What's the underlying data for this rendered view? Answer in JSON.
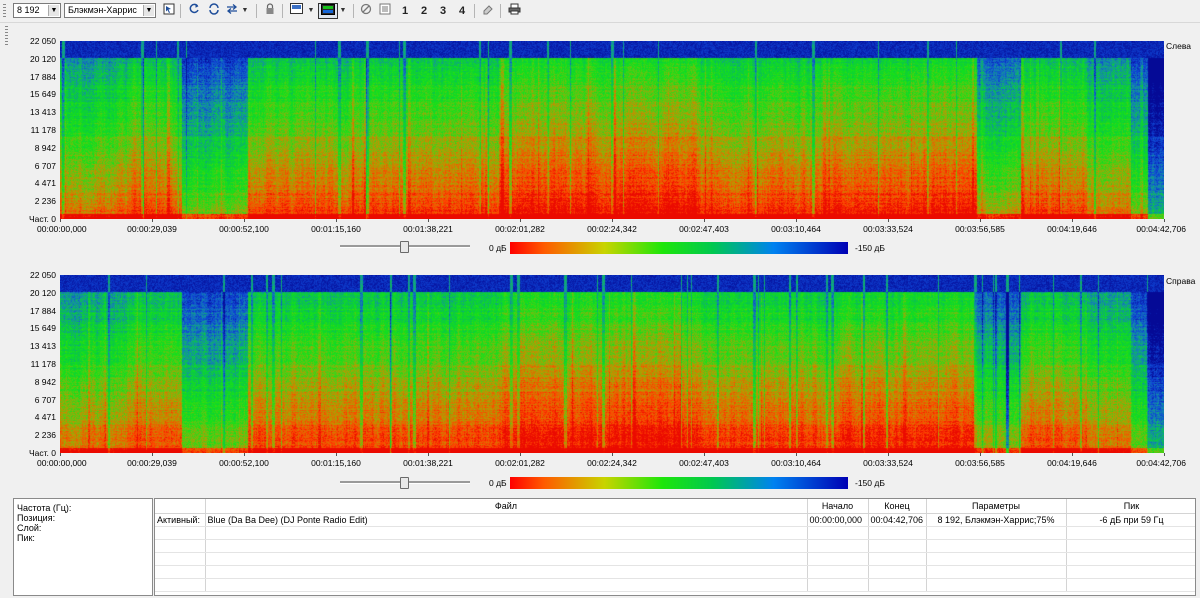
{
  "toolbar": {
    "fft_size": "8 192",
    "window": "Блэкмэн-Харрис",
    "buttons": [
      {
        "name": "select-icon"
      },
      {
        "name": "refresh-icon"
      },
      {
        "name": "sync-icon"
      },
      {
        "name": "swap-icon"
      },
      {
        "name": "lock-icon"
      },
      {
        "name": "display-mode-icon"
      },
      {
        "name": "spectrum-view-icon"
      },
      {
        "name": "cancel-icon"
      },
      {
        "name": "list-icon"
      },
      {
        "name": "layer-1-button",
        "label": "1"
      },
      {
        "name": "layer-2-button",
        "label": "2"
      },
      {
        "name": "layer-3-button",
        "label": "3"
      },
      {
        "name": "layer-4-button",
        "label": "4"
      },
      {
        "name": "eraser-icon"
      },
      {
        "name": "print-icon"
      }
    ]
  },
  "spectrograms": [
    {
      "channel": "Слева",
      "y_labels": [
        "22 050",
        "20 120",
        "17 884",
        "15 649",
        "13 413",
        "11 178",
        "8 942",
        "6 707",
        "4 471",
        "2 236",
        "Част. 0"
      ],
      "x_labels": [
        "00:00:00,000",
        "00:00:29,039",
        "00:00:52,100",
        "00:01:15,160",
        "00:01:38,221",
        "00:02:01,282",
        "00:02:24,342",
        "00:02:47,403",
        "00:03:10,464",
        "00:03:33,524",
        "00:03:56,585",
        "00:04:19,646",
        "00:04:42,706"
      ],
      "slider_value": 0.5
    },
    {
      "channel": "Справа",
      "y_labels": [
        "22 050",
        "20 120",
        "17 884",
        "15 649",
        "13 413",
        "11 178",
        "8 942",
        "6 707",
        "4 471",
        "2 236",
        "Част. 0"
      ],
      "x_labels": [
        "00:00:00,000",
        "00:00:29,039",
        "00:00:52,100",
        "00:01:15,160",
        "00:01:38,221",
        "00:02:01,282",
        "00:02:24,342",
        "00:02:47,403",
        "00:03:10,464",
        "00:03:33,524",
        "00:03:56,585",
        "00:04:19,646",
        "00:04:42,706"
      ],
      "slider_value": 0.5
    }
  ],
  "scale": {
    "min_label": "0 дБ",
    "max_label": "-150 дБ",
    "colors": [
      "#ff0000",
      "#1ee60a",
      "#0000b4"
    ]
  },
  "info": {
    "frequency_label": "Частота (Гц):",
    "position_label": "Позиция:",
    "layer_label": "Слой:",
    "peak_label": "Пик:"
  },
  "table": {
    "headers": [
      "",
      "Файл",
      "Начало",
      "Конец",
      "Параметры",
      "Пик"
    ],
    "rows": [
      [
        "Активный:",
        "Blue (Da Ba Dee) (DJ Ponte Radio Edit)",
        "00:00:00,000",
        "00:04:42,706",
        "8 192, Блэкмэн-Харрис;75%",
        "-6 дБ при 59 Гц"
      ]
    ],
    "empty_rows": 5
  }
}
